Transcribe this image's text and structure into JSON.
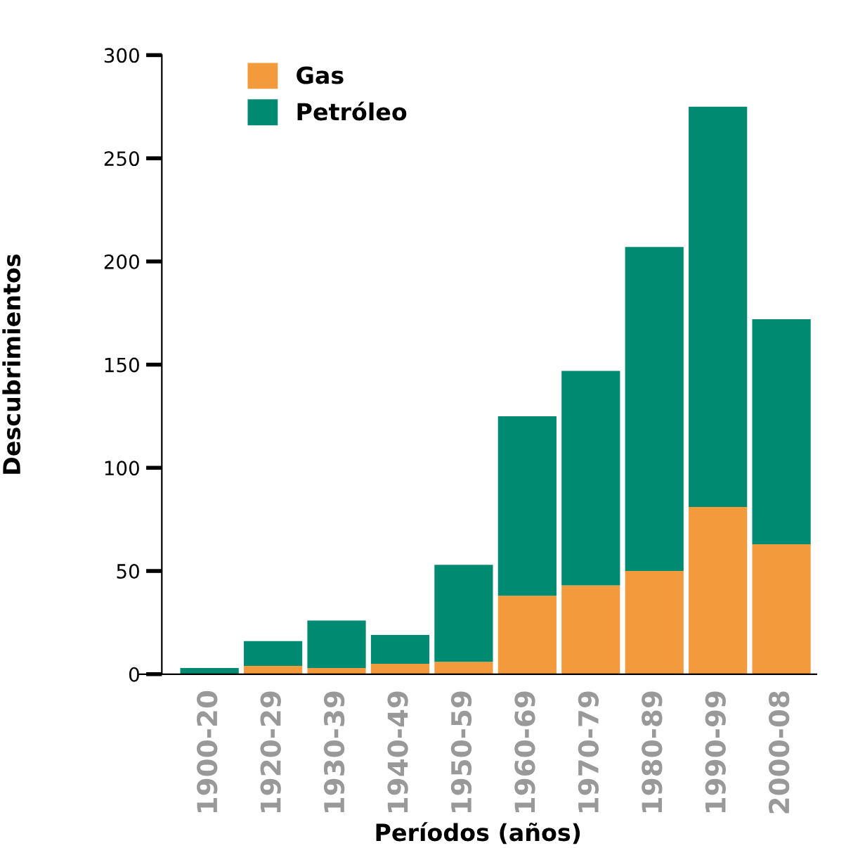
{
  "chart_data": {
    "type": "bar",
    "stacked": true,
    "xlabel": "Períodos (años)",
    "ylabel": "Descubrimientos",
    "categories": [
      "1900-20",
      "1920-29",
      "1930-39",
      "1940-49",
      "1950-59",
      "1960-69",
      "1970-79",
      "1980-89",
      "1990-99",
      "2000-08"
    ],
    "series": [
      {
        "name": "Gas",
        "color": "#f39a3c",
        "values": [
          0,
          4,
          3,
          5,
          6,
          38,
          43,
          50,
          81,
          63
        ]
      },
      {
        "name": "Petróleo",
        "color": "#008a72",
        "values": [
          3,
          12,
          23,
          14,
          47,
          87,
          104,
          157,
          194,
          109
        ]
      }
    ],
    "ylim": [
      0,
      300
    ],
    "yticks": [
      0,
      50,
      100,
      150,
      200,
      250,
      300
    ],
    "grid": false,
    "legend": "top left"
  }
}
